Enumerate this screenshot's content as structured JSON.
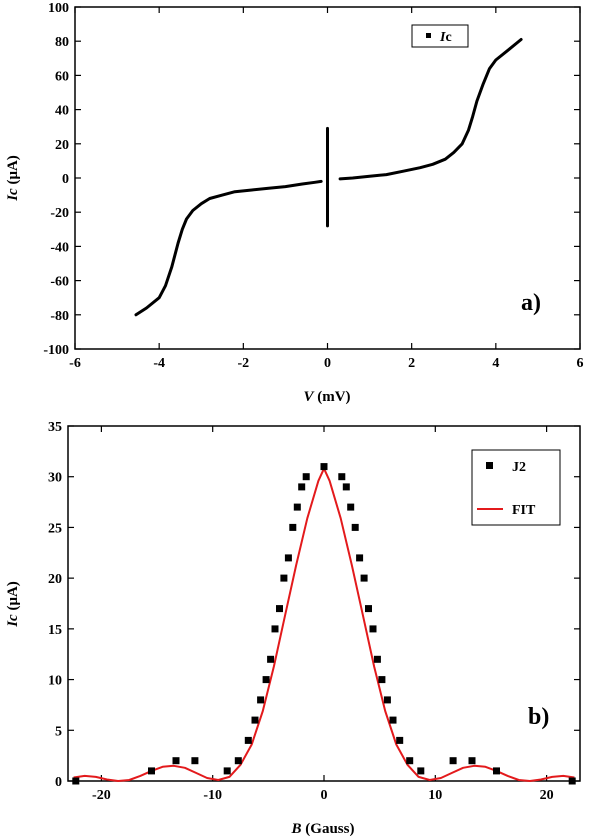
{
  "chart_data": [
    {
      "type": "line",
      "panel_label": "a)",
      "xlabel_italic": "V",
      "xlabel_rest": " (mV)",
      "ylabel_italic": "Ic",
      "ylabel_rest": " (μA)",
      "xlim": [
        -6,
        6
      ],
      "ylim": [
        -100,
        100
      ],
      "xticks": [
        -6,
        -4,
        -2,
        0,
        2,
        4,
        6
      ],
      "yticks": [
        -100,
        -80,
        -60,
        -40,
        -20,
        0,
        20,
        40,
        60,
        80,
        100
      ],
      "grid": false,
      "legend_position": "top-right",
      "legend": [
        {
          "name_italic": "I",
          "name_rest": "c",
          "marker": "square"
        }
      ],
      "series": [
        {
          "name": "Ic",
          "color": "#000000",
          "segments": [
            {
              "x": [
                -4.55,
                -4.3,
                -4.0,
                -3.85,
                -3.7,
                -3.55,
                -3.45,
                -3.35,
                -3.2,
                -3.0,
                -2.8,
                -2.5,
                -2.2,
                -1.8,
                -1.4,
                -1.0,
                -0.6,
                -0.3,
                -0.15
              ],
              "y": [
                -80,
                -76,
                -70,
                -63,
                -52,
                -38,
                -30,
                -24,
                -19,
                -15,
                -12,
                -10,
                -8,
                -7,
                -6,
                -5,
                -3.5,
                -2.5,
                -2
              ]
            },
            {
              "x": [
                0,
                0,
                0
              ],
              "y": [
                -28,
                0,
                29
              ]
            },
            {
              "x": [
                0.3,
                0.6,
                1.0,
                1.4,
                1.8,
                2.2,
                2.5,
                2.8,
                3.0,
                3.2,
                3.35,
                3.45,
                3.55,
                3.7,
                3.85,
                4.0,
                4.3,
                4.6
              ],
              "y": [
                -0.5,
                0,
                1,
                2,
                4,
                6,
                8,
                11,
                15,
                20,
                28,
                36,
                45,
                55,
                64,
                69,
                75,
                81
              ]
            }
          ]
        }
      ]
    },
    {
      "type": "scatter",
      "panel_label": "b)",
      "xlabel_italic": "B",
      "xlabel_rest": " (Gauss)",
      "ylabel_italic": "Ic",
      "ylabel_rest": " (μA)",
      "xlim": [
        -23,
        23
      ],
      "ylim": [
        0,
        35
      ],
      "xticks": [
        -20,
        -10,
        0,
        10,
        20
      ],
      "yticks": [
        0,
        5,
        10,
        15,
        20,
        25,
        30,
        35
      ],
      "grid": false,
      "legend_position": "top-right",
      "series": [
        {
          "name": "J2",
          "kind": "scatter",
          "color": "#000000",
          "x": [
            -22.3,
            -15.5,
            -13.3,
            -11.6,
            -8.7,
            -7.7,
            -6.8,
            -6.2,
            -5.7,
            -5.2,
            -4.8,
            -4.4,
            -4.0,
            -3.6,
            -3.2,
            -2.8,
            -2.4,
            -2.0,
            -1.6,
            0,
            1.6,
            2.0,
            2.4,
            2.8,
            3.2,
            3.6,
            4.0,
            4.4,
            4.8,
            5.2,
            5.7,
            6.2,
            6.8,
            7.7,
            8.7,
            11.6,
            13.3,
            15.5,
            22.3
          ],
          "y": [
            0,
            1,
            2,
            2,
            1,
            2,
            4,
            6,
            8,
            10,
            12,
            15,
            17,
            20,
            22,
            25,
            27,
            29,
            30,
            31,
            30,
            29,
            27,
            25,
            22,
            20,
            17,
            15,
            12,
            10,
            8,
            6,
            4,
            2,
            1,
            2,
            2,
            1,
            0
          ]
        },
        {
          "name": "FIT",
          "kind": "line",
          "color": "#e31a1c",
          "x": [
            -22.5,
            -21.5,
            -20.5,
            -19.5,
            -18.5,
            -17.5,
            -16.5,
            -15.5,
            -14.5,
            -13.5,
            -12.5,
            -11.5,
            -10.5,
            -9.5,
            -8.5,
            -7.5,
            -6.5,
            -5.5,
            -4.5,
            -3.5,
            -2.5,
            -1.5,
            -0.5,
            0,
            0.5,
            1.5,
            2.5,
            3.5,
            4.5,
            5.5,
            6.5,
            7.5,
            8.5,
            9.5,
            10.5,
            11.5,
            12.5,
            13.5,
            14.5,
            15.5,
            16.5,
            17.5,
            18.5,
            19.5,
            20.5,
            21.5,
            22.5
          ],
          "y": [
            0.35,
            0.5,
            0.4,
            0.15,
            0.0,
            0.1,
            0.5,
            1.0,
            1.4,
            1.5,
            1.3,
            0.8,
            0.3,
            0.1,
            0.4,
            1.6,
            3.6,
            6.9,
            11.3,
            16.3,
            21.3,
            25.9,
            29.6,
            30.8,
            29.6,
            25.9,
            21.3,
            16.3,
            11.3,
            6.9,
            3.6,
            1.6,
            0.4,
            0.1,
            0.3,
            0.8,
            1.3,
            1.5,
            1.4,
            1.0,
            0.5,
            0.1,
            0.0,
            0.15,
            0.4,
            0.5,
            0.35
          ]
        }
      ]
    }
  ]
}
